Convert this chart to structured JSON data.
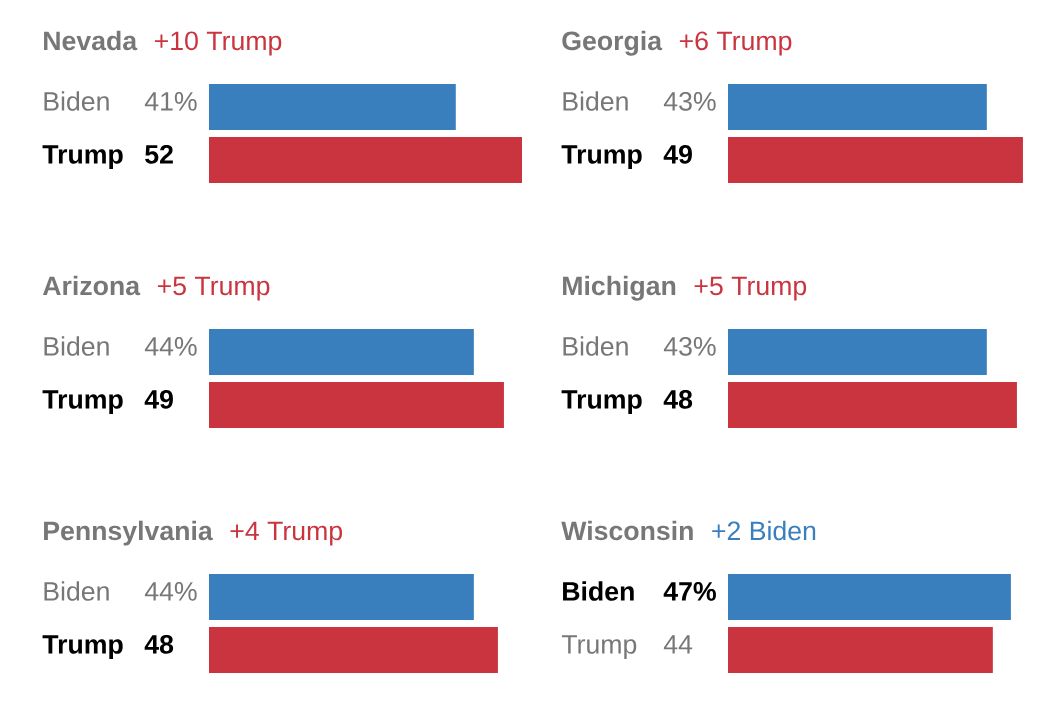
{
  "chart_data": [
    {
      "type": "bar",
      "orientation": "horizontal",
      "title": "Nevada",
      "subtitle": "+10 Trump",
      "categories": [
        "Biden",
        "Trump"
      ],
      "values": [
        41,
        52
      ],
      "value_labels": [
        "41%",
        "52"
      ],
      "colors": [
        "#3a7fbd",
        "#c9343f"
      ]
    },
    {
      "type": "bar",
      "orientation": "horizontal",
      "title": "Georgia",
      "subtitle": "+6 Trump",
      "categories": [
        "Biden",
        "Trump"
      ],
      "values": [
        43,
        49
      ],
      "value_labels": [
        "43%",
        "49"
      ],
      "colors": [
        "#3a7fbd",
        "#c9343f"
      ]
    },
    {
      "type": "bar",
      "orientation": "horizontal",
      "title": "Arizona",
      "subtitle": "+5 Trump",
      "categories": [
        "Biden",
        "Trump"
      ],
      "values": [
        44,
        49
      ],
      "value_labels": [
        "44%",
        "49"
      ],
      "colors": [
        "#3a7fbd",
        "#c9343f"
      ]
    },
    {
      "type": "bar",
      "orientation": "horizontal",
      "title": "Michigan",
      "subtitle": "+5 Trump",
      "categories": [
        "Biden",
        "Trump"
      ],
      "values": [
        43,
        48
      ],
      "value_labels": [
        "43%",
        "48"
      ],
      "colors": [
        "#3a7fbd",
        "#c9343f"
      ]
    },
    {
      "type": "bar",
      "orientation": "horizontal",
      "title": "Pennsylvania",
      "subtitle": "+4 Trump",
      "categories": [
        "Biden",
        "Trump"
      ],
      "values": [
        44,
        48
      ],
      "value_labels": [
        "44%",
        "48"
      ],
      "colors": [
        "#3a7fbd",
        "#c9343f"
      ]
    },
    {
      "type": "bar",
      "orientation": "horizontal",
      "title": "Wisconsin",
      "subtitle": "+2 Biden",
      "categories": [
        "Biden",
        "Trump"
      ],
      "values": [
        47,
        44
      ],
      "value_labels": [
        "47%",
        "44"
      ],
      "colors": [
        "#3a7fbd",
        "#c9343f"
      ]
    }
  ]
}
